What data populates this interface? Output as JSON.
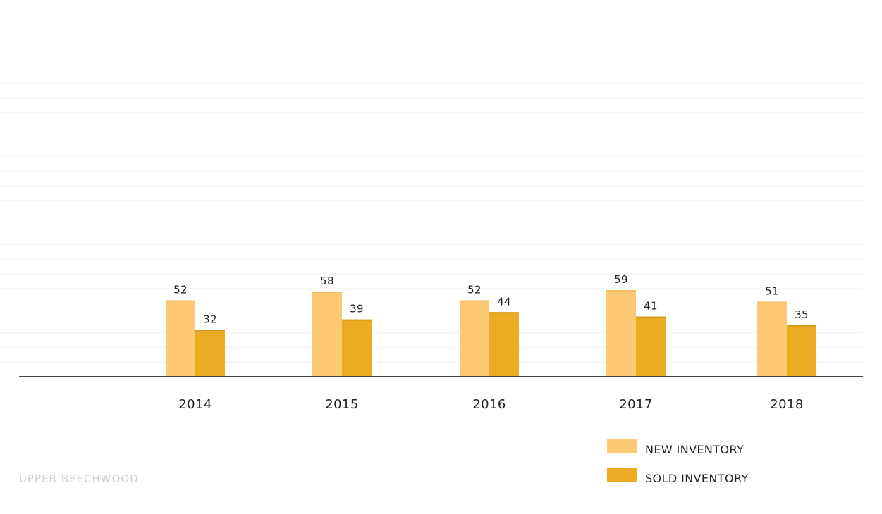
{
  "chart_data": {
    "type": "bar",
    "categories": [
      "2014",
      "2015",
      "2016",
      "2017",
      "2018"
    ],
    "series": [
      {
        "name": "NEW INVENTORY",
        "values": [
          52,
          58,
          52,
          59,
          51
        ],
        "color": "#fdc974"
      },
      {
        "name": "SOLD INVENTORY",
        "values": [
          32,
          39,
          44,
          41,
          35
        ],
        "color": "#ebac24"
      }
    ],
    "ylim": [
      0,
      200
    ],
    "grid": true,
    "legend_position": "bottom-right",
    "axis_color": "#444444",
    "grid_color": "#f3f3f3"
  },
  "footer": {
    "label": "UPPER BEECHWOOD"
  }
}
